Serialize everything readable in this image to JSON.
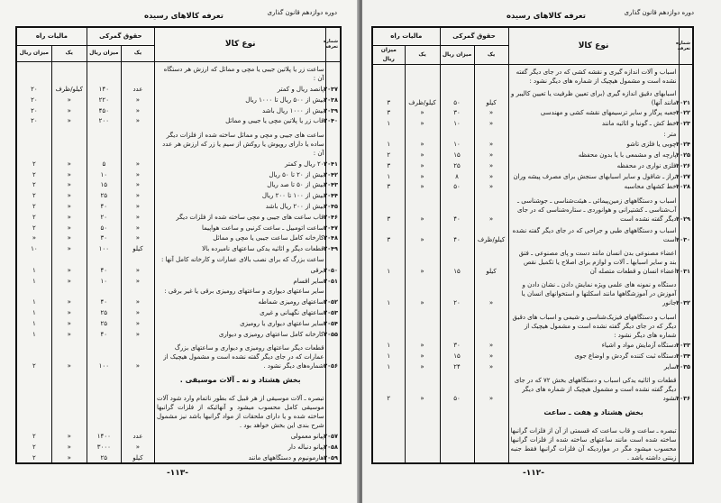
{
  "running_head": "دوره دوازدهم قانون گذاری",
  "running_title": "تعرفه کالاهای رسیده",
  "columns": {
    "tariff_no": "شماره تعرفه",
    "goods": "نوع کالا",
    "customs": "حقوق گمرکی",
    "road_tax": "مالیات راه",
    "unit": "یک",
    "amount": "میزان ریال"
  },
  "left_page": {
    "folio": "-۱۱۳-",
    "rows": [
      {
        "num": "",
        "desc": "ساعت زر یا پلاتین جیبی یا مچی و مماثل که ارزش هر دستگاه آن :",
        "cu": "",
        "ca": "",
        "ru": "",
        "ra": ""
      },
      {
        "num": "۲۰۳۷",
        "desc": "پانصد ریال و کمتر",
        "cu": "عدد",
        "ca": "۱۴۰",
        "ru": "کیلو/ظرف",
        "ra": "۲۰"
      },
      {
        "num": "۲۰۳۸",
        "desc": "بیش از ۵۰۰ ریال تا ۱۰۰۰ ریال",
        "cu": "«",
        "ca": "۲۲۰",
        "ru": "«",
        "ra": "۲۰"
      },
      {
        "num": "۲۰۳۹",
        "desc": "بیش از ۱۰۰۰ ریال باشد",
        "cu": "«",
        "ca": "۴۵۰",
        "ru": "«",
        "ra": "۲۰"
      },
      {
        "num": "۲۰۴۰",
        "desc": "قاب زر یا پلاتین مچی یا جیبی و مماثل",
        "cu": "«",
        "ca": "۲۰۰",
        "ru": "«",
        "ra": "۲۰"
      },
      {
        "num": "",
        "desc": "ساعت های جیبی و مچی و مماثل ساخته شده از فلزات دیگر ساده یا دارای روپوش یا روکش از سیم یا زر که ارزش هر عدد آن :",
        "cu": "",
        "ca": "",
        "ru": "",
        "ra": ""
      },
      {
        "num": "۲۰۴۱",
        "desc": "۲۰ ریال و کمتر",
        "cu": "«",
        "ca": "۵",
        "ru": "«",
        "ra": "۲"
      },
      {
        "num": "۲۰۴۲",
        "desc": "بیش از ۲۰ تا ۵۰ ریال",
        "cu": "«",
        "ca": "۱۰",
        "ru": "«",
        "ra": "۲"
      },
      {
        "num": "۲۰۴۳",
        "desc": "بیش از ۵۰ تا صد ریال",
        "cu": "«",
        "ca": "۱۵",
        "ru": "«",
        "ra": "۲"
      },
      {
        "num": "۲۰۴۴",
        "desc": "بیش از ۱۰۰ تا ۲۰۰ ریال",
        "cu": "«",
        "ca": "۲۵",
        "ru": "«",
        "ra": "۲"
      },
      {
        "num": "۲۰۴۵",
        "desc": "بیش از ۲۰۰ ریال باشد",
        "cu": "«",
        "ca": "۴۰",
        "ru": "«",
        "ra": "۲"
      },
      {
        "num": "۲۰۴۶",
        "desc": "قاب ساعت های جیبی و مچی ساخته شده از فلزات دیگر",
        "cu": "«",
        "ca": "۲۰",
        "ru": "«",
        "ra": "۲"
      },
      {
        "num": "۲۰۴۷",
        "desc": "ساعت اتومبیل ـ ساعت کرنبی و ساعت هواپیما",
        "cu": "«",
        "ca": "۵۰",
        "ru": "«",
        "ra": "۲"
      },
      {
        "num": "۲۰۴۸",
        "desc": "کارخانه کامل ساعت جیبی یا مچی و مماثل",
        "cu": "«",
        "ca": "۳۰",
        "ru": "«",
        "ra": "«"
      },
      {
        "num": "۲۰۴۹",
        "desc": "قطعات دیگر و اثاثیه یدکی ساعتهای نامبرده بالا",
        "cu": "کیلو",
        "ca": "۱۰۰",
        "ru": "«",
        "ra": "۱۰"
      },
      {
        "num": "",
        "desc": "ساعت بزرگ که برای نصب بالای عمارات و کارخانه کامل آنها :",
        "cu": "",
        "ca": "",
        "ru": "",
        "ra": ""
      },
      {
        "num": "۲۰۵۰",
        "desc": "برقی",
        "cu": "«",
        "ca": "۴۰",
        "ru": "«",
        "ra": "۱"
      },
      {
        "num": "۲۰۵۱",
        "desc": "سایر اقسام",
        "cu": "«",
        "ca": "۱۰",
        "ru": "«",
        "ra": "۱"
      },
      {
        "num": "",
        "desc": "سایر ساعتهای دیواری و ساعتهای رومیزی برقی یا غیر برقی :",
        "cu": "",
        "ca": "",
        "ru": "",
        "ra": ""
      },
      {
        "num": "۲۰۵۲",
        "desc": "ساعتهای رومیزی شماطه",
        "cu": "«",
        "ca": "۴۰",
        "ru": "«",
        "ra": "۱"
      },
      {
        "num": "۲۰۵۳",
        "desc": "ساعتهای نگهبانی و غیری",
        "cu": "«",
        "ca": "۲۵",
        "ru": "«",
        "ra": "۱"
      },
      {
        "num": "۲۰۵۴",
        "desc": "سایر ساعتهای دیواری یا رومیزی",
        "cu": "«",
        "ca": "۲۵",
        "ru": "«",
        "ra": "۱"
      },
      {
        "num": "۲۰۵۵",
        "desc": "کارخانه کامل ساعتهای رومیزی و دیواری",
        "cu": "«",
        "ca": "۴۰",
        "ru": "«",
        "ra": "۱"
      },
      {
        "num": "۲۰۵۶",
        "desc": "قطعات دیگر ساعتهای رومیزی و دیواری و ساعتهای بزرگ عمارات که در جای دیگر گفته نشده است و مشمول هیچیک از شماره‌های دیگر نشود .",
        "cu": "«",
        "ca": "۱۰۰",
        "ru": "«",
        "ra": "۲"
      },
      {
        "num": "",
        "desc": "بخش هشتاد و نه ـ آلات موسیقی .",
        "cu": "",
        "ca": "",
        "ru": "",
        "ra": "",
        "type": "heading"
      },
      {
        "num": "",
        "desc": "تبصره ـ آلات موسیقی از هر قبیل که بطور ناتمام وارد شود آلات موسیقی کامل محسوب میشود و آنهائیکه از فلزات گرانبها ساخته شده و یا دارای ملحقات از مواد گرانبها باشد نیز مشمول شرح بندی این بخش خواهد بود .",
        "cu": "",
        "ca": "",
        "ru": "",
        "ra": "",
        "type": "note"
      },
      {
        "num": "۲۰۵۷",
        "desc": "پیانو معمولی",
        "cu": "عدد",
        "ca": "۱۴۰۰",
        "ru": "«",
        "ra": "۲"
      },
      {
        "num": "۲۰۵۸",
        "desc": "پیانو دنباله دار",
        "cu": "«",
        "ca": "۳۰۰۰",
        "ru": "«",
        "ra": "۲"
      },
      {
        "num": "۲۰۵۹",
        "desc": "هارمونیوم و دستگاههای مانند",
        "cu": "کیلو",
        "ca": "۲۵",
        "ru": "«",
        "ra": "۲"
      }
    ]
  },
  "right_page": {
    "folio": "-۱۱۲-",
    "rows": [
      {
        "num": "",
        "desc": "اسباب و آلات اندازه گیری و نقشه کشی که در جای دیگر گفته نشده است و مشمول هیچیک از شماره های دیگر نشود :",
        "cu": "",
        "ca": "",
        "ru": "",
        "ra": ""
      },
      {
        "num": "۲۰۲۱",
        "desc": "اسبابهای دقیق اندازه گیری (برای تعیین ظرفیت یا تعیین کالیبر و مانند آنها)",
        "cu": "کیلو",
        "ca": "۵۰",
        "ru": "کیلو/ظرف",
        "ra": "۳"
      },
      {
        "num": "۲۰۲۲",
        "desc": "جعبه پرگار و سایر ترسیمهای نقشه کشی و مهندسی",
        "cu": "«",
        "ca": "۳۰",
        "ru": "«",
        "ra": "۳"
      },
      {
        "num": "۲۰۲۳",
        "desc": "خط کش ـ گونیا و اثاثیه مانند",
        "cu": "«",
        "ca": "۱۰",
        "ru": "«",
        "ra": "۱"
      },
      {
        "num": "",
        "desc": "متر :",
        "cu": "",
        "ca": "",
        "ru": "",
        "ra": ""
      },
      {
        "num": "۲۰۲۴",
        "desc": "چوبی یا فلزی تاشو",
        "cu": "«",
        "ca": "۱۰",
        "ru": "«",
        "ra": "۱"
      },
      {
        "num": "۲۰۲۵",
        "desc": "پارچه ای و مشمعی با یا بدون محفظه",
        "cu": "«",
        "ca": "۱۵",
        "ru": "«",
        "ra": "۲"
      },
      {
        "num": "۲۰۲۶",
        "desc": "فلزی نواری در محفظه",
        "cu": "«",
        "ca": "۲۵",
        "ru": "«",
        "ra": "۳"
      },
      {
        "num": "۲۰۲۷",
        "desc": "تراز ـ شاقول و سایر اسبابهای سنجش برای مصرف پیشه وران",
        "cu": "«",
        "ca": "۸",
        "ru": "«",
        "ra": "۱"
      },
      {
        "num": "۲۰۲۸",
        "desc": "خط کشهای محاسبه",
        "cu": "«",
        "ca": "۵۰",
        "ru": "«",
        "ra": "۳"
      },
      {
        "num": "۲۰۲۹",
        "desc": "اسباب و دستگاههای زمین‌پیمائی ـ هیئت‌شناسی ـ جوشناسی ـ آب‌شناسی ـ کشتیرانی و هوانوردی ـ ستاره‌شناسی که در جای دیگر گفته نشده است",
        "cu": "«",
        "ca": "۴۰",
        "ru": "«",
        "ra": "۳"
      },
      {
        "num": "۲۰۳۰",
        "desc": "اسباب و دستگاههای طبی و جراحی که در جای دیگر گفته نشده است",
        "cu": "کیلو/ظرف",
        "ca": "۴۰",
        "ru": "«",
        "ra": "۳"
      },
      {
        "num": "۲۰۳۱",
        "desc": "اعضاء مصنوعی بدن انسان مانند دست و پای مصنوعی ـ فتق بند و سایر اسبابها ـ آلات و لوازم برای اصلاح یا تکمیل نقص اعضاء انسان و قطعات متصله آن",
        "cu": "کیلو",
        "ca": "۱۵",
        "ru": "«",
        "ra": "۱"
      },
      {
        "num": "۲۰۳۲",
        "desc": "دستگاه و نمونه های علمی ویژه نمایش دادن ـ نشان دادن و آموزش در آموزشگاهها مانند اسکلتها و استخوانهای انسان یا جانور",
        "cu": "«",
        "ca": "۲۰",
        "ru": "«",
        "ra": "۱"
      },
      {
        "num": "",
        "desc": "اسباب و دستگاههای فیزیک‌شناسی و شیمی و اسباب های دقیق دیگر که در جای دیگر گفته نشده است و مشمول هیچیک از شماره های دیگر نشود :",
        "cu": "",
        "ca": "",
        "ru": "",
        "ra": ""
      },
      {
        "num": "۲۰۳۳",
        "desc": "دستگاه آزمایش مواد و اشیاء",
        "cu": "«",
        "ca": "۳۰",
        "ru": "«",
        "ra": "۱"
      },
      {
        "num": "۲۰۳۴",
        "desc": "دستگاه ثبت کننده گردش و اوضاع جوی",
        "cu": "«",
        "ca": "۱۵",
        "ru": "«",
        "ra": "۱"
      },
      {
        "num": "۲۰۳۵",
        "desc": "سایر",
        "cu": "«",
        "ca": "۲۴",
        "ru": "«",
        "ra": "۱"
      },
      {
        "num": "۲۰۳۶",
        "desc": "قطعات و اثاثیه یدکی اسباب و دستگاههای بخش ۷۲ که در جای دیگر گفته نشده است و مشمول هیچیک از شماره های دیگر نشود",
        "cu": "«",
        "ca": "۵۰",
        "ru": "«",
        "ra": "۲"
      },
      {
        "num": "",
        "desc": "بخش هشتاد و هفت ـ ساعت",
        "cu": "",
        "ca": "",
        "ru": "",
        "ra": "",
        "type": "heading"
      },
      {
        "num": "",
        "desc": "تبصره ـ ساعت و قاب ساعت که قسمتی از آن از فلزات گرانبها ساخته شده است مانند ساعتهای ساخته شده از فلزات گرانبها محسوب میشود مگر در مواردیکه آن فلزات گرانبها فقط جنبه زینتی داشته باشد .",
        "cu": "",
        "ca": "",
        "ru": "",
        "ra": "",
        "type": "note"
      }
    ]
  }
}
